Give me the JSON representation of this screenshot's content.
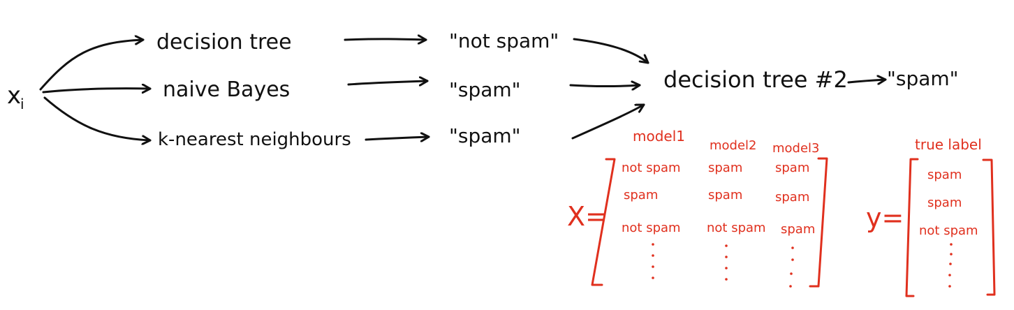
{
  "colors": {
    "ink": "#111111",
    "accent": "#e0301e"
  },
  "input": {
    "label": "x",
    "subscript": "i"
  },
  "models": [
    {
      "name": "decision tree",
      "prediction": "\"not spam\""
    },
    {
      "name": "naive Bayes",
      "prediction": "\"spam\""
    },
    {
      "name": "k-nearest neighbours",
      "prediction": "\"spam\""
    }
  ],
  "meta_model": {
    "name": "decision tree #2",
    "prediction": "\"spam\""
  },
  "X_matrix": {
    "symbol": "X=",
    "headers": [
      "model1",
      "model2",
      "model3"
    ],
    "rows": [
      [
        "not spam",
        "spam",
        "spam"
      ],
      [
        "spam",
        "spam",
        "spam"
      ],
      [
        "not spam",
        "not spam",
        "spam"
      ]
    ]
  },
  "y_vector": {
    "symbol": "y=",
    "header": "true label",
    "rows": [
      "spam",
      "spam",
      "not spam"
    ]
  }
}
